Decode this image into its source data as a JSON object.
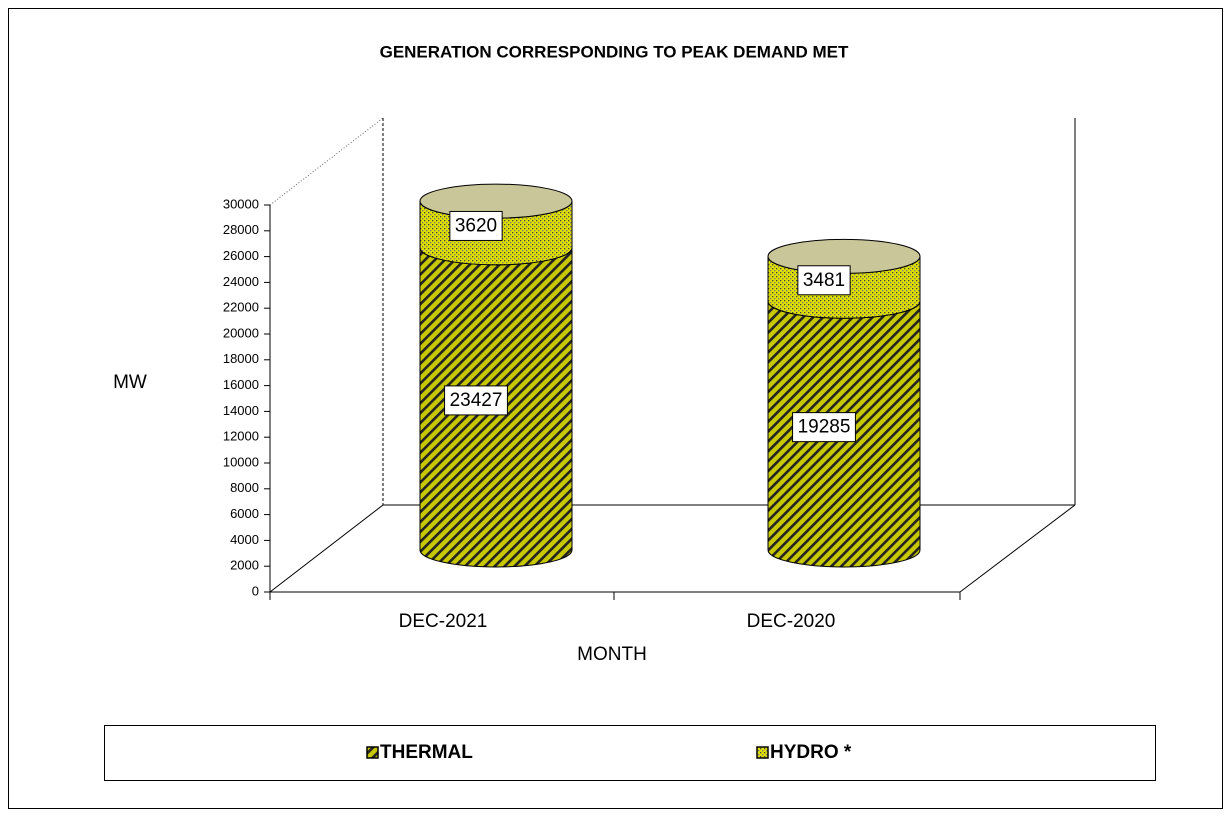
{
  "chart_data": {
    "type": "bar",
    "stacked": true,
    "title": "GENERATION CORRESPONDING TO PEAK DEMAND MET",
    "x_label": "MONTH",
    "y_label": "MW",
    "categories": [
      "DEC-2021",
      "DEC-2020"
    ],
    "series": [
      {
        "name": "THERMAL",
        "color": "#c8c800",
        "values": [
          23427,
          19285
        ]
      },
      {
        "name": "HYDRO *",
        "color": "#e0e000",
        "values": [
          3620,
          3481
        ]
      }
    ],
    "ylim": [
      0,
      30000
    ],
    "yticks": [
      0,
      2000,
      4000,
      6000,
      8000,
      10000,
      12000,
      14000,
      16000,
      18000,
      20000,
      22000,
      24000,
      26000,
      28000,
      30000
    ],
    "grid": false,
    "legend": "bottom"
  }
}
